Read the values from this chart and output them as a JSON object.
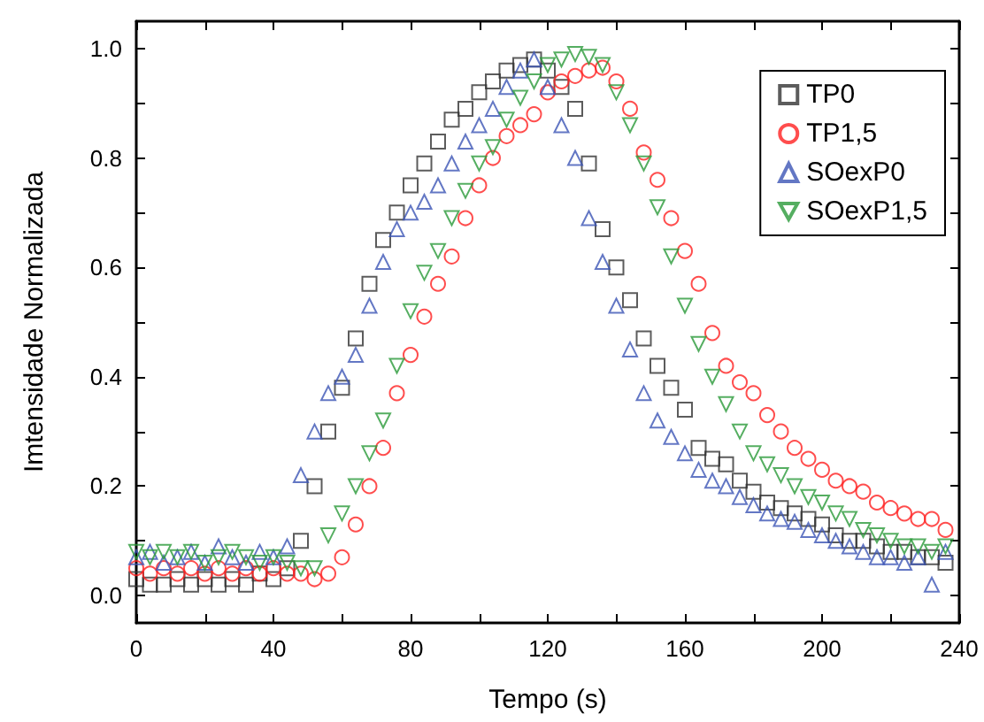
{
  "chart_data": {
    "type": "scatter",
    "xlabel": "Tempo (s)",
    "ylabel": "Imtensidade Normalizada",
    "x": [
      0,
      4,
      8,
      12,
      16,
      20,
      24,
      28,
      32,
      36,
      40,
      44,
      48,
      52,
      56,
      60,
      64,
      68,
      72,
      76,
      80,
      84,
      88,
      92,
      96,
      100,
      104,
      108,
      112,
      116,
      120,
      124,
      128,
      132,
      136,
      140,
      144,
      148,
      152,
      156,
      160,
      164,
      168,
      172,
      176,
      180,
      184,
      188,
      192,
      196,
      200,
      204,
      208,
      212,
      216,
      220,
      224,
      228,
      232,
      236
    ],
    "series": [
      {
        "name": "TP0",
        "color": "#333333",
        "marker": "square",
        "values": [
          0.03,
          0.02,
          0.02,
          0.03,
          0.02,
          0.03,
          0.02,
          0.03,
          0.02,
          0.04,
          0.03,
          0.05,
          0.1,
          0.2,
          0.3,
          0.38,
          0.47,
          0.57,
          0.65,
          0.7,
          0.75,
          0.79,
          0.83,
          0.87,
          0.89,
          0.92,
          0.94,
          0.96,
          0.97,
          0.98,
          0.96,
          0.93,
          0.89,
          0.79,
          0.67,
          0.6,
          0.54,
          0.47,
          0.42,
          0.38,
          0.34,
          0.27,
          0.25,
          0.24,
          0.21,
          0.19,
          0.17,
          0.16,
          0.15,
          0.14,
          0.13,
          0.11,
          0.1,
          0.1,
          0.09,
          0.08,
          0.08,
          0.07,
          0.07,
          0.06
        ]
      },
      {
        "name": "TP1,5",
        "color": "#ff2020",
        "marker": "circle",
        "values": [
          0.05,
          0.04,
          0.05,
          0.04,
          0.05,
          0.04,
          0.05,
          0.04,
          0.05,
          0.04,
          0.05,
          0.04,
          0.04,
          0.03,
          0.04,
          0.07,
          0.13,
          0.2,
          0.27,
          0.37,
          0.44,
          0.51,
          0.57,
          0.62,
          0.69,
          0.75,
          0.8,
          0.84,
          0.86,
          0.88,
          0.92,
          0.94,
          0.95,
          0.96,
          0.965,
          0.94,
          0.89,
          0.81,
          0.76,
          0.69,
          0.63,
          0.57,
          0.48,
          0.42,
          0.39,
          0.37,
          0.33,
          0.3,
          0.27,
          0.25,
          0.23,
          0.21,
          0.2,
          0.19,
          0.17,
          0.16,
          0.15,
          0.14,
          0.14,
          0.12
        ]
      },
      {
        "name": "SOexP0",
        "color": "#3c55b5",
        "marker": "triangle",
        "values": [
          0.07,
          0.08,
          0.06,
          0.07,
          0.08,
          0.06,
          0.09,
          0.07,
          0.06,
          0.08,
          0.07,
          0.09,
          0.22,
          0.3,
          0.37,
          0.4,
          0.44,
          0.53,
          0.61,
          0.67,
          0.7,
          0.72,
          0.75,
          0.79,
          0.83,
          0.86,
          0.89,
          0.93,
          0.96,
          0.98,
          0.93,
          0.86,
          0.8,
          0.69,
          0.61,
          0.53,
          0.45,
          0.37,
          0.32,
          0.29,
          0.26,
          0.23,
          0.21,
          0.2,
          0.18,
          0.165,
          0.15,
          0.14,
          0.135,
          0.12,
          0.11,
          0.1,
          0.09,
          0.08,
          0.07,
          0.07,
          0.06,
          0.07,
          0.02,
          0.08
        ]
      },
      {
        "name": "SOexP1,5",
        "color": "#2a9a3a",
        "marker": "triangle_down",
        "values": [
          0.08,
          0.07,
          0.08,
          0.07,
          0.08,
          0.06,
          0.07,
          0.08,
          0.07,
          0.06,
          0.07,
          0.06,
          0.05,
          0.05,
          0.11,
          0.15,
          0.2,
          0.26,
          0.32,
          0.42,
          0.52,
          0.59,
          0.63,
          0.69,
          0.74,
          0.79,
          0.82,
          0.87,
          0.91,
          0.94,
          0.97,
          0.98,
          0.99,
          0.985,
          0.97,
          0.92,
          0.86,
          0.79,
          0.71,
          0.62,
          0.53,
          0.46,
          0.4,
          0.35,
          0.3,
          0.26,
          0.24,
          0.22,
          0.2,
          0.18,
          0.17,
          0.15,
          0.14,
          0.12,
          0.11,
          0.1,
          0.09,
          0.09,
          0.08,
          0.09
        ]
      }
    ],
    "xlim": [
      0,
      240
    ],
    "xticks": [
      0,
      {
        "value": 20,
        "label": null
      },
      40,
      {
        "value": 60,
        "label": null
      },
      80,
      {
        "value": 100,
        "label": null
      },
      120,
      {
        "value": 140,
        "label": null
      },
      160,
      {
        "value": 180,
        "label": null
      },
      200,
      {
        "value": 220,
        "label": null
      },
      240
    ],
    "ylim": [
      -0.05,
      1.05
    ],
    "yticks": [
      {
        "value": 0,
        "label": "0.0"
      },
      {
        "value": 0.1,
        "label": null
      },
      {
        "value": 0.2,
        "label": "0.2"
      },
      {
        "value": 0.3,
        "label": null
      },
      {
        "value": 0.4,
        "label": "0.4"
      },
      {
        "value": 0.5,
        "label": null
      },
      {
        "value": 0.6,
        "label": "0.6"
      },
      {
        "value": 0.7,
        "label": null
      },
      {
        "value": 0.8,
        "label": "0.8"
      },
      {
        "value": 0.9,
        "label": null
      },
      {
        "value": 1,
        "label": "1.0"
      }
    ],
    "grid": false,
    "legend": "top right"
  }
}
